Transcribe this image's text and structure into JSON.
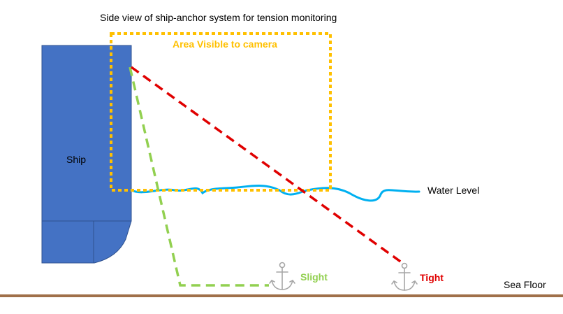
{
  "title": "Side view of ship-anchor system for tension monitoring",
  "labels": {
    "camera_area": "Area Visible to camera",
    "ship": "Ship",
    "water_level": "Water Level",
    "slight": "Slight",
    "tight": "Tight",
    "sea_floor": "Sea Floor"
  },
  "colors": {
    "ship_fill": "#4472c4",
    "ship_stroke": "#2f528f",
    "camera_box": "#ffc000",
    "water": "#00b0f0",
    "slight": "#92d050",
    "tight": "#e00000",
    "sea_floor": "#a0704a",
    "anchor": "#a6a6a6",
    "text": "#000000"
  },
  "icons": [
    "anchor-icon"
  ]
}
